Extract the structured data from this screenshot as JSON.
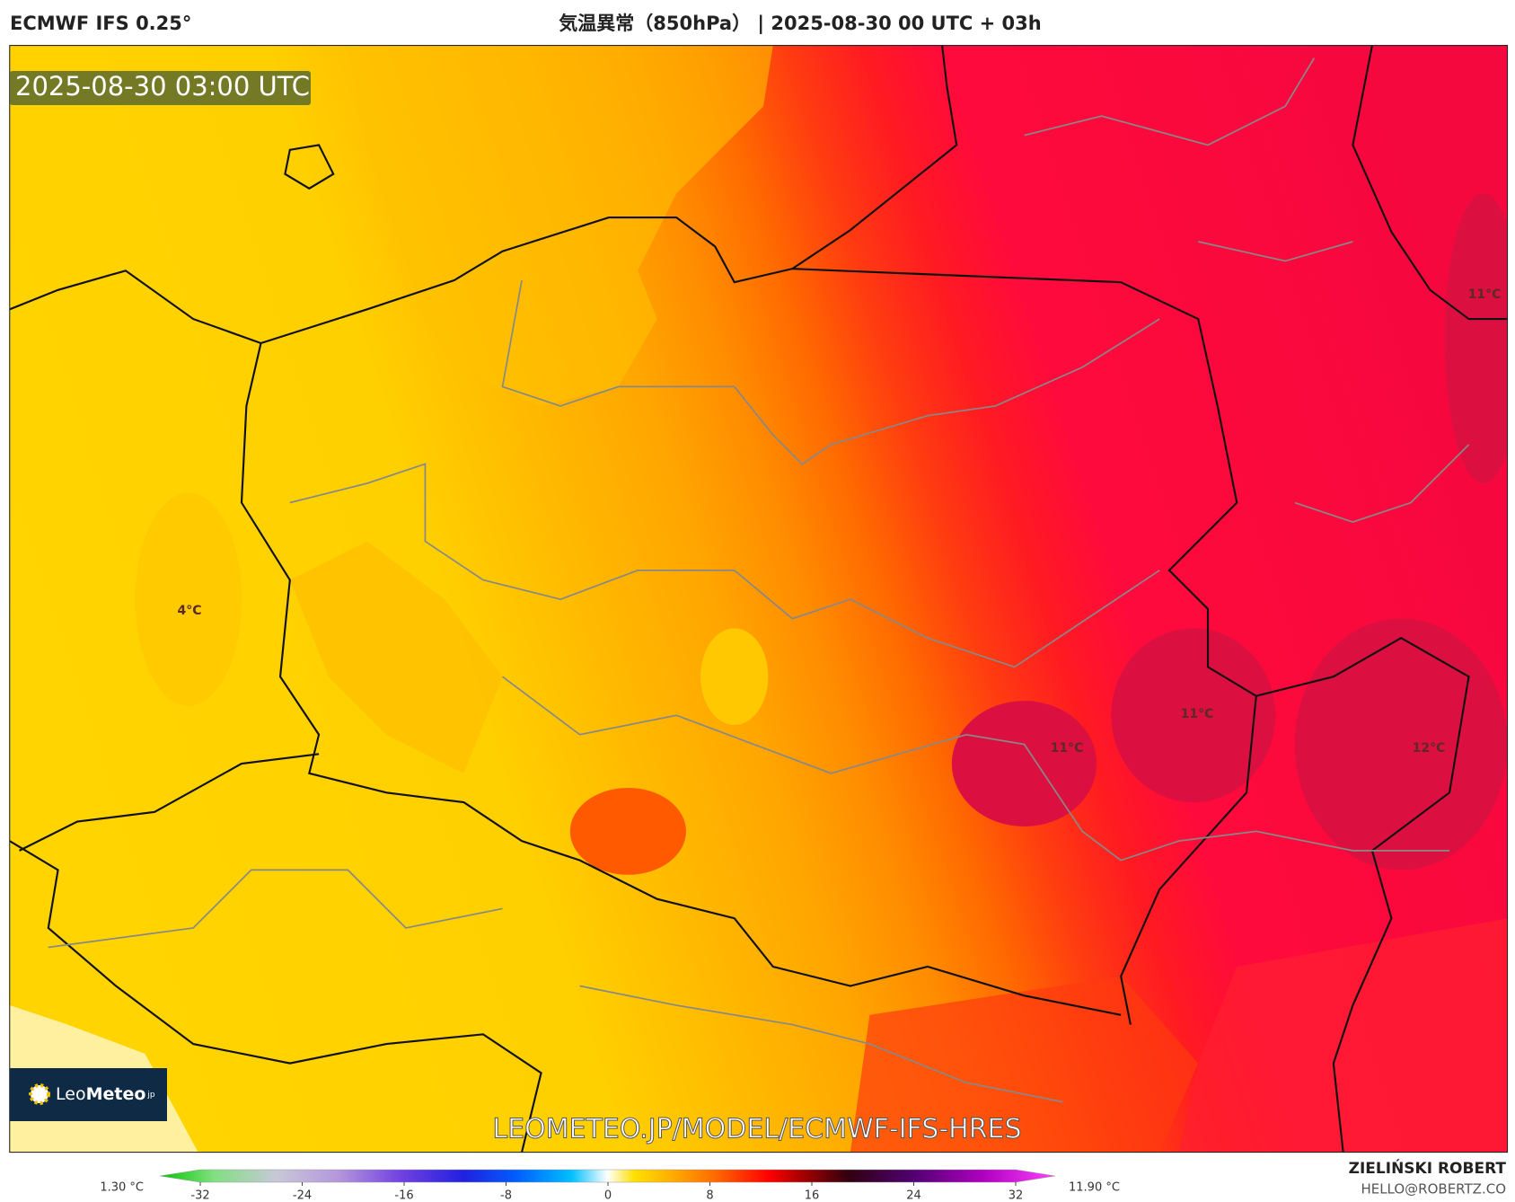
{
  "header": {
    "model": "ECMWF IFS 0.25°",
    "title": "気温異常（850hPa） | 2025-08-30 00 UTC + 03h"
  },
  "map": {
    "timestamp": "2025-08-30 03:00 UTC",
    "labels": [
      "4°C",
      "11°C",
      "11°C",
      "11°C",
      "12°C"
    ],
    "watermark": "LEOMETEO.JP/MODEL/ECMWF-IFS-HRES",
    "logo": {
      "leo": "Leo",
      "meteo": "Meteo",
      "tld": "jp"
    }
  },
  "colorbar": {
    "min_label": "1.30 °C",
    "max_label": "11.90 °C",
    "lim": [
      -32,
      32
    ],
    "ticks": [
      -32,
      -24,
      -16,
      -8,
      0,
      8,
      16,
      24,
      32
    ]
  },
  "credit": {
    "name": "ZIELIŃSKI ROBERT",
    "email": "HELLO@ROBERTZ.CO"
  }
}
